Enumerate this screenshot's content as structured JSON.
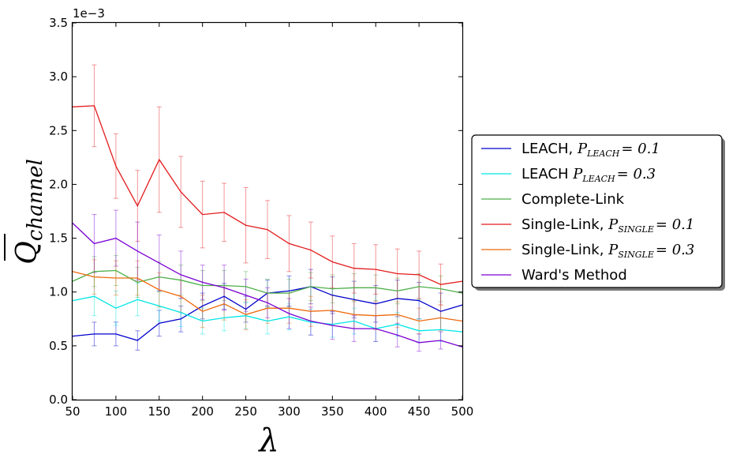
{
  "chart_data": {
    "type": "line",
    "xlabel": "λ",
    "ylabel_main": "Q",
    "ylabel_sub": "channel",
    "y_offset_label": "1e−3",
    "xlim": [
      50,
      500
    ],
    "ylim": [
      0.0,
      3.5
    ],
    "x_ticks": [
      50,
      100,
      150,
      200,
      250,
      300,
      350,
      400,
      450,
      500
    ],
    "y_ticks": [
      0.0,
      0.5,
      1.0,
      1.5,
      2.0,
      2.5,
      3.0,
      3.5
    ],
    "grid": false,
    "legend_placement": "right-outside",
    "x": [
      50,
      75,
      100,
      125,
      150,
      175,
      200,
      225,
      250,
      275,
      300,
      325,
      350,
      375,
      400,
      425,
      450,
      475,
      500
    ],
    "series": [
      {
        "name": "LEACH, ",
        "math": "P",
        "sub": "LEACH",
        "eq": "= 0.1",
        "color": "#0000cc",
        "values": [
          0.59,
          0.61,
          0.61,
          0.55,
          0.71,
          0.75,
          0.87,
          0.96,
          0.84,
          0.99,
          1.01,
          1.05,
          0.97,
          0.93,
          0.89,
          0.94,
          0.92,
          0.82,
          0.88
        ],
        "errors": [
          0,
          0.11,
          0.11,
          0.09,
          0.12,
          0.12,
          0.12,
          0.12,
          0.12,
          0.12,
          0.14,
          0.16,
          0.17,
          0.17,
          0.17,
          0.17,
          0.17,
          0.17,
          0
        ]
      },
      {
        "name": "LEACH ",
        "math": "P",
        "sub": "LEACH",
        "eq": "= 0.3",
        "color": "#00e5e5",
        "values": [
          0.92,
          0.96,
          0.85,
          0.93,
          0.87,
          0.81,
          0.73,
          0.76,
          0.78,
          0.73,
          0.77,
          0.72,
          0.7,
          0.73,
          0.66,
          0.7,
          0.64,
          0.65,
          0.63
        ],
        "errors": [
          0,
          0.18,
          0.16,
          0.15,
          0.14,
          0.13,
          0.12,
          0.12,
          0.12,
          0.12,
          0.12,
          0.12,
          0.12,
          0.12,
          0.12,
          0.11,
          0.11,
          0.11,
          0
        ]
      },
      {
        "name": "Complete-Link",
        "math": "",
        "sub": "",
        "eq": "",
        "color": "#4daf4a",
        "values": [
          1.1,
          1.19,
          1.2,
          1.09,
          1.14,
          1.11,
          1.06,
          1.06,
          1.05,
          0.99,
          0.99,
          1.05,
          1.03,
          1.04,
          1.04,
          1.01,
          1.05,
          1.03,
          0.99
        ],
        "errors": [
          0,
          0.14,
          0.14,
          0.14,
          0.14,
          0.14,
          0.14,
          0.14,
          0.14,
          0.13,
          0.13,
          0.13,
          0.13,
          0.13,
          0.12,
          0.12,
          0.12,
          0.12,
          0
        ]
      },
      {
        "name": "Single-Link, ",
        "math": "P",
        "sub": "SINGLE",
        "eq": "= 0.1",
        "color": "#e41a1c",
        "values": [
          2.72,
          2.73,
          2.17,
          1.8,
          2.23,
          1.93,
          1.72,
          1.74,
          1.62,
          1.58,
          1.45,
          1.39,
          1.28,
          1.22,
          1.21,
          1.17,
          1.16,
          1.07,
          1.1
        ],
        "errors": [
          0,
          0.38,
          0.3,
          0.33,
          0.49,
          0.33,
          0.31,
          0.27,
          0.35,
          0.27,
          0.26,
          0.26,
          0.24,
          0.23,
          0.23,
          0.23,
          0.22,
          0.19,
          0
        ]
      },
      {
        "name": "Single-Link, ",
        "math": "P",
        "sub": "SINGLE",
        "eq": "= 0.3",
        "color": "#ee6a0e",
        "values": [
          1.19,
          1.14,
          1.13,
          1.13,
          1.02,
          0.96,
          0.82,
          0.89,
          0.79,
          0.85,
          0.85,
          0.82,
          0.83,
          0.79,
          0.78,
          0.79,
          0.73,
          0.76,
          0.73
        ],
        "errors": [
          0,
          0.16,
          0.16,
          0.16,
          0.16,
          0.15,
          0.15,
          0.15,
          0.14,
          0.14,
          0.14,
          0.14,
          0.14,
          0.13,
          0.13,
          0.12,
          0.12,
          0.12,
          0
        ]
      },
      {
        "name": "Ward's Method",
        "math": "",
        "sub": "",
        "eq": "",
        "color": "#7a00d4",
        "values": [
          1.64,
          1.45,
          1.5,
          1.38,
          1.27,
          1.16,
          1.09,
          1.04,
          0.97,
          0.9,
          0.8,
          0.73,
          0.69,
          0.66,
          0.66,
          0.6,
          0.53,
          0.55,
          0.49
        ],
        "errors": [
          0,
          0.27,
          0.26,
          0.27,
          0.26,
          0.22,
          0.16,
          0.21,
          0.15,
          0.14,
          0.14,
          0.13,
          0.13,
          0.12,
          0.12,
          0.11,
          0.08,
          0.08,
          0
        ]
      }
    ]
  }
}
